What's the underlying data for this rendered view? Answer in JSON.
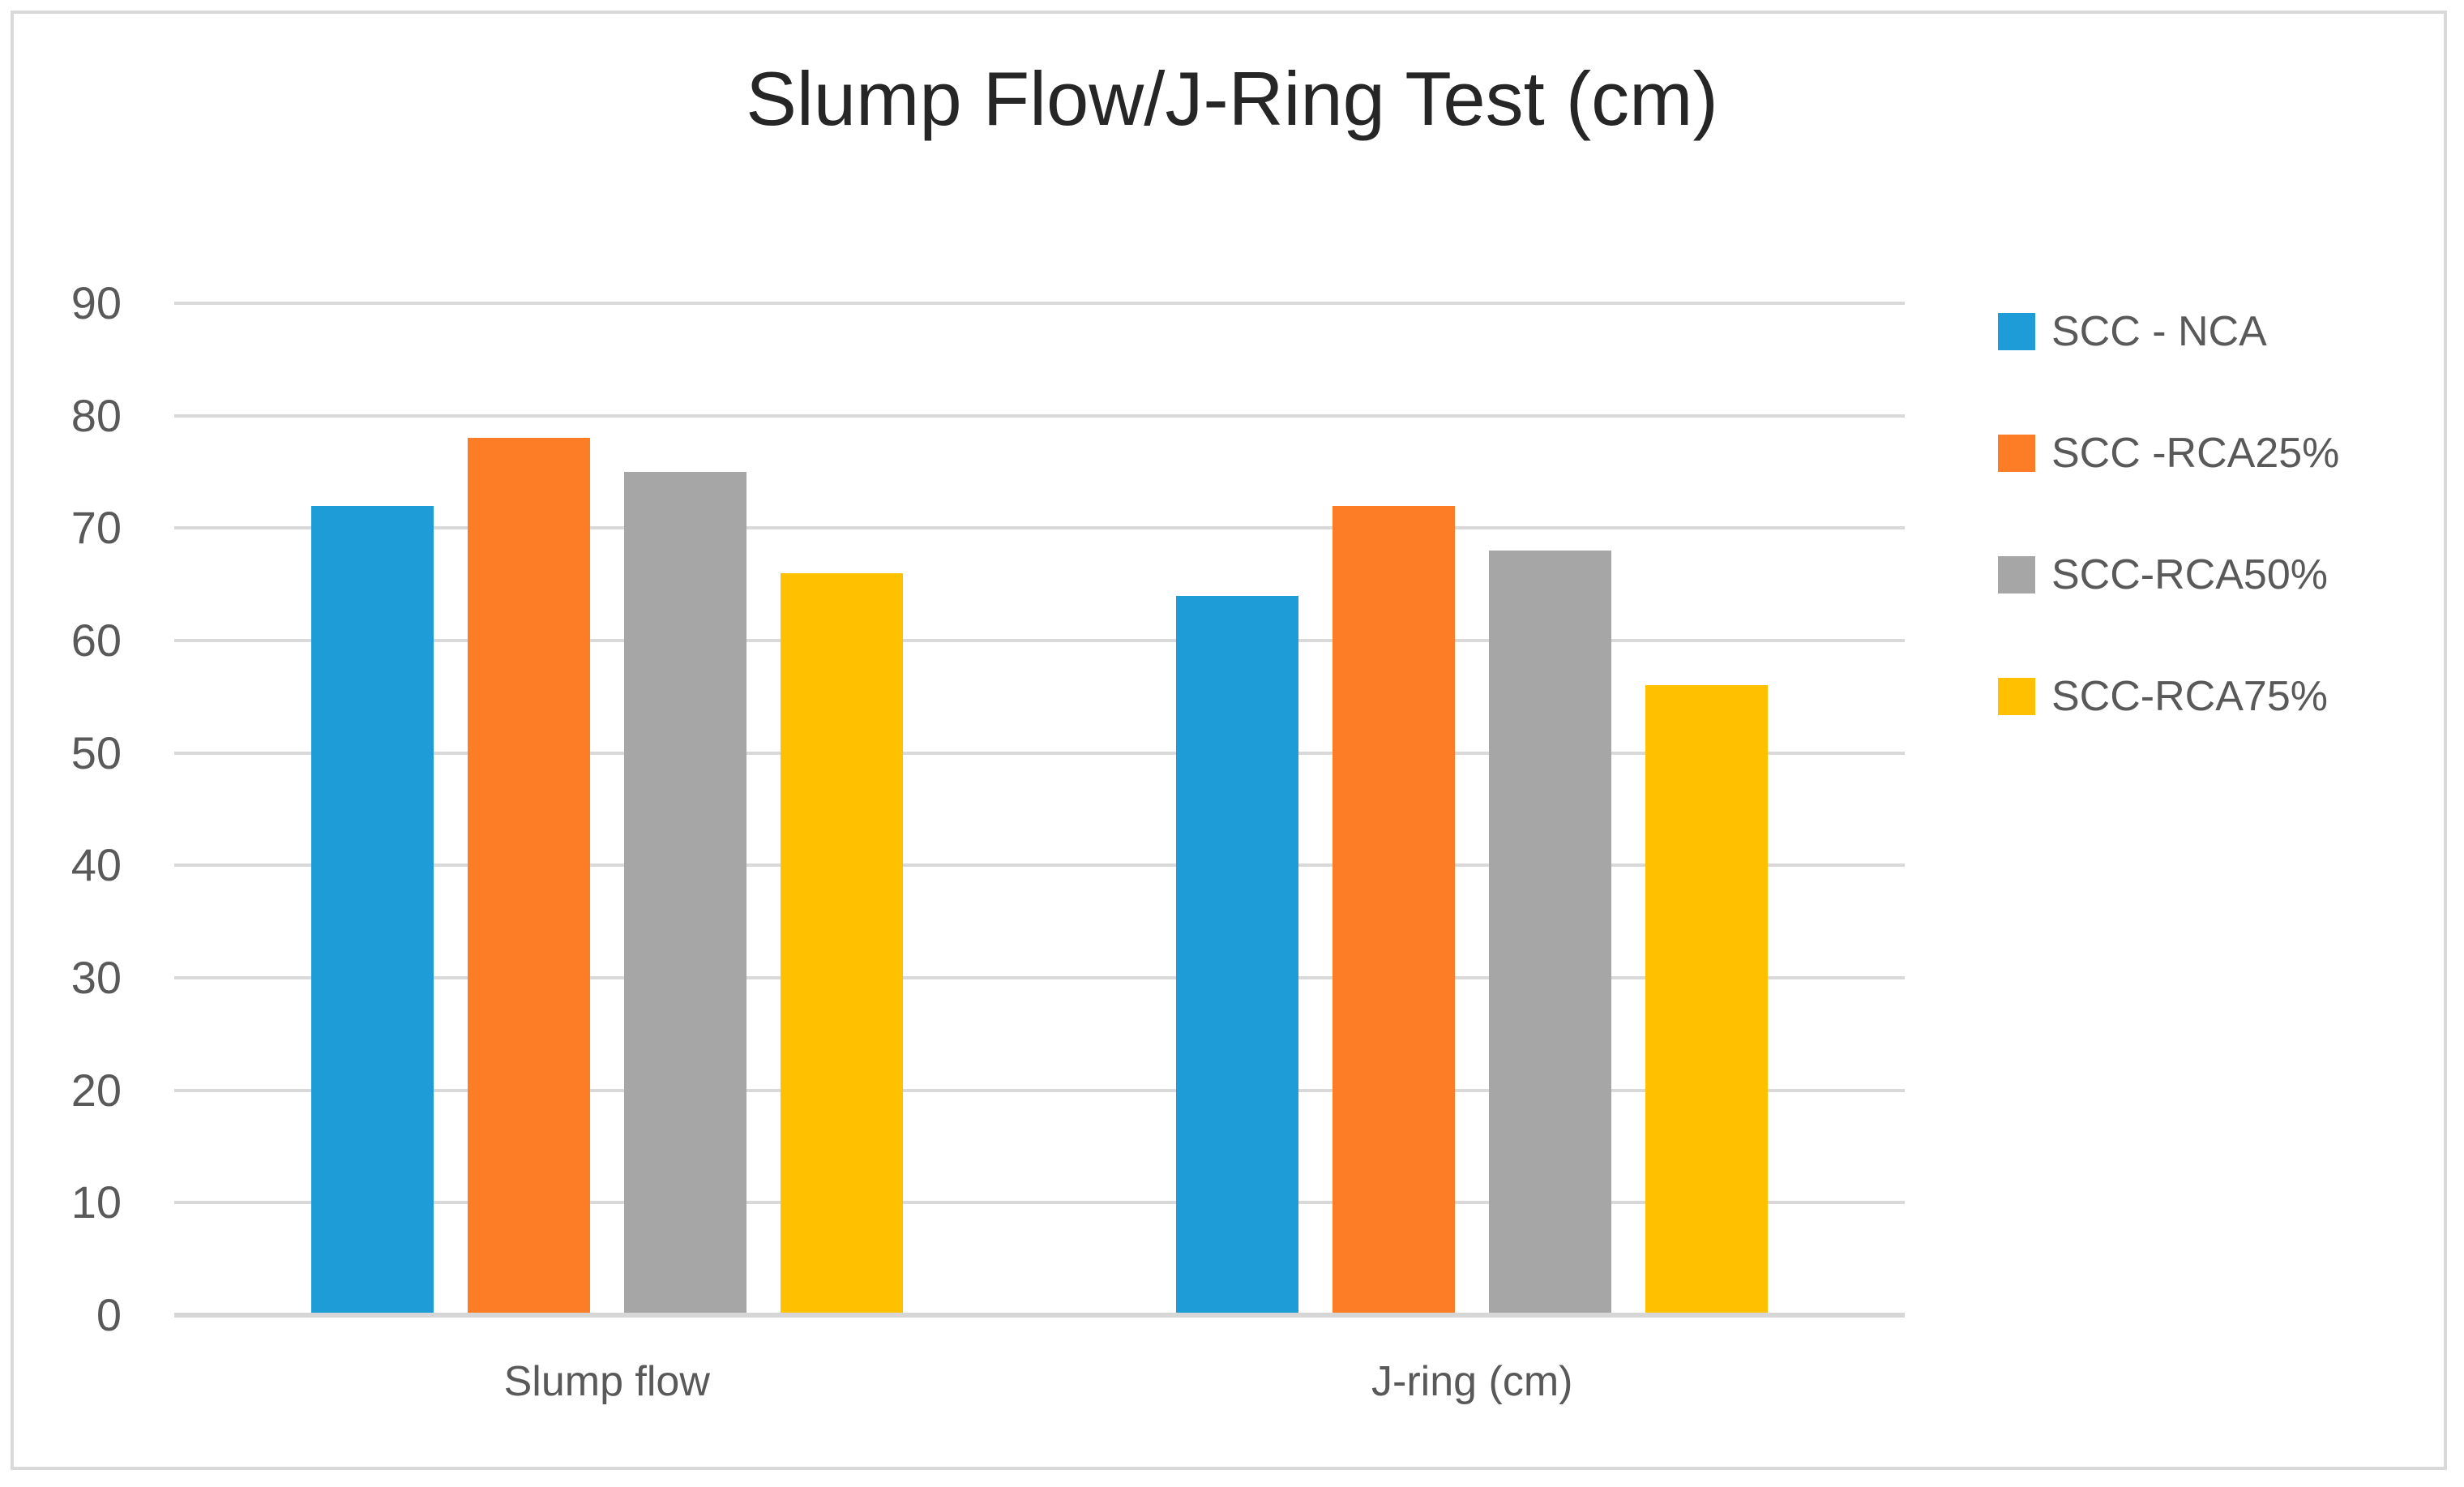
{
  "chart_data": {
    "type": "bar",
    "title": "Slump Flow/J-Ring Test (cm)",
    "categories": [
      "Slump flow",
      "J-ring (cm)"
    ],
    "series": [
      {
        "name": "SCC - NCA",
        "color": "#1E9CD7",
        "values": [
          72,
          64
        ]
      },
      {
        "name": "SCC -RCA25%",
        "color": "#FC7D26",
        "values": [
          78,
          72
        ]
      },
      {
        "name": "SCC-RCA50%",
        "color": "#A6A6A6",
        "values": [
          75,
          68
        ]
      },
      {
        "name": "SCC-RCA75%",
        "color": "#FFC000",
        "values": [
          66,
          56
        ]
      }
    ],
    "ylim": [
      0,
      90
    ],
    "yticks": [
      0,
      10,
      20,
      30,
      40,
      50,
      60,
      70,
      80,
      90
    ],
    "grid": true,
    "legend_position": "right",
    "colors": {
      "gridline": "#D9D9D9",
      "axis_line": "#D6D6D6",
      "tick_text": "#595959",
      "title_text": "#262626",
      "border": "#D9D9D9",
      "background": "#FFFFFF"
    }
  }
}
